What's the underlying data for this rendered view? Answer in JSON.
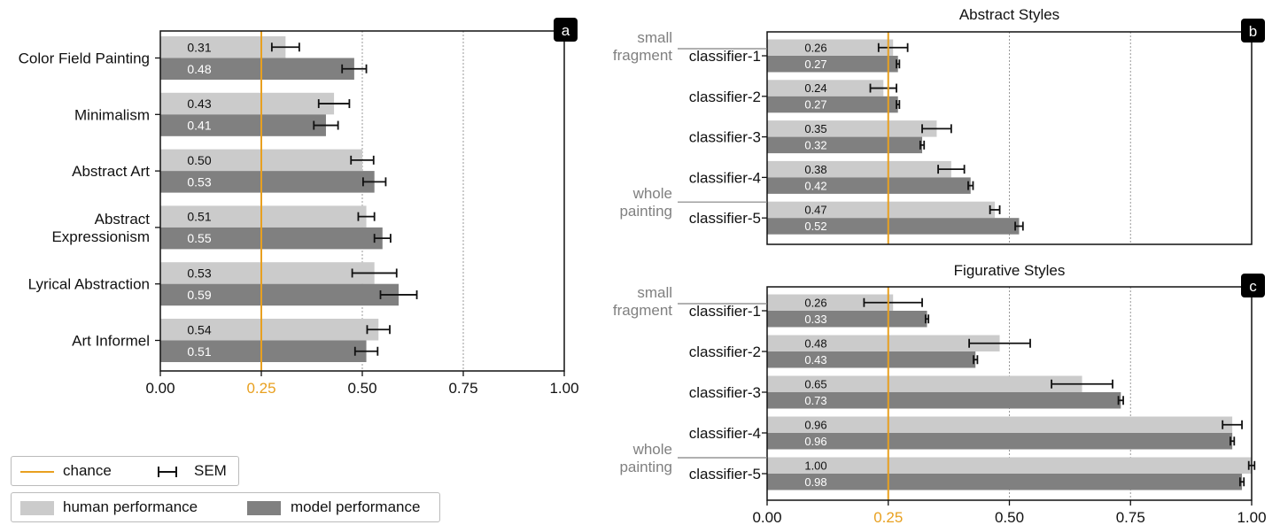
{
  "chart_data": [
    {
      "type": "bar",
      "panel_label": "a",
      "title": "",
      "categories": [
        "Color Field Painting",
        "Minimalism",
        "Abstract Art",
        "Abstract Expressionism",
        "Lyrical Abstraction",
        "Art Informel"
      ],
      "category_lines": [
        [
          "Color Field Painting"
        ],
        [
          "Minimalism"
        ],
        [
          "Abstract Art"
        ],
        [
          "Abstract",
          "Expressionism"
        ],
        [
          "Lyrical Abstraction"
        ],
        [
          "Art Informel"
        ]
      ],
      "series": [
        {
          "name": "human performance",
          "values": [
            0.31,
            0.43,
            0.5,
            0.51,
            0.53,
            0.54
          ],
          "labels": [
            "0.31",
            "0.43",
            "0.50",
            "0.51",
            "0.53",
            "0.54"
          ],
          "sem": [
            0.034,
            0.038,
            0.028,
            0.02,
            0.055,
            0.028
          ]
        },
        {
          "name": "model performance",
          "values": [
            0.48,
            0.41,
            0.53,
            0.55,
            0.59,
            0.51
          ],
          "labels": [
            "0.48",
            "0.41",
            "0.53",
            "0.55",
            "0.59",
            "0.51"
          ],
          "sem": [
            0.03,
            0.03,
            0.028,
            0.02,
            0.045,
            0.028
          ]
        }
      ],
      "xlim": [
        0,
        1
      ],
      "xticks": [
        "0.00",
        "0.25",
        "0.50",
        "0.75",
        "1.00"
      ],
      "chance": 0.25
    },
    {
      "type": "bar",
      "panel_label": "b",
      "title": "Abstract Styles",
      "categories": [
        "classifier-1",
        "classifier-2",
        "classifier-3",
        "classifier-4",
        "classifier-5"
      ],
      "side_labels": {
        "top": [
          "small",
          "fragment"
        ],
        "bottom": [
          "whole",
          "painting"
        ]
      },
      "series": [
        {
          "name": "human performance",
          "values": [
            0.26,
            0.24,
            0.35,
            0.38,
            0.47
          ],
          "labels": [
            "0.26",
            "0.24",
            "0.35",
            "0.38",
            "0.47"
          ],
          "sem": [
            0.03,
            0.027,
            0.03,
            0.027,
            0.01
          ]
        },
        {
          "name": "model performance",
          "values": [
            0.27,
            0.27,
            0.32,
            0.42,
            0.52
          ],
          "labels": [
            "0.27",
            "0.27",
            "0.32",
            "0.42",
            "0.52"
          ],
          "sem": [
            0.003,
            0.003,
            0.004,
            0.005,
            0.008
          ]
        }
      ],
      "xlim": [
        0,
        1
      ],
      "chance": 0.25
    },
    {
      "type": "bar",
      "panel_label": "c",
      "title": "Figurative Styles",
      "categories": [
        "classifier-1",
        "classifier-2",
        "classifier-3",
        "classifier-4",
        "classifier-5"
      ],
      "side_labels": {
        "top": [
          "small",
          "fragment"
        ],
        "bottom": [
          "whole",
          "painting"
        ]
      },
      "series": [
        {
          "name": "human performance",
          "values": [
            0.26,
            0.48,
            0.65,
            0.96,
            1.0
          ],
          "labels": [
            "0.26",
            "0.48",
            "0.65",
            "0.96",
            "1.00"
          ],
          "sem": [
            0.06,
            0.063,
            0.063,
            0.02,
            0.006
          ]
        },
        {
          "name": "model performance",
          "values": [
            0.33,
            0.43,
            0.73,
            0.96,
            0.98
          ],
          "labels": [
            "0.33",
            "0.43",
            "0.73",
            "0.96",
            "0.98"
          ],
          "sem": [
            0.003,
            0.004,
            0.005,
            0.004,
            0.004
          ]
        }
      ],
      "xlim": [
        0,
        1
      ],
      "xticks": [
        "0.00",
        "0.25",
        "0.50",
        "0.75",
        "1.00"
      ],
      "chance": 0.25
    }
  ],
  "legend": {
    "chance": "chance",
    "sem": "SEM",
    "human": "human performance",
    "model": "model performance"
  },
  "colors": {
    "human": "#cbcbcb",
    "model": "#808080",
    "chance": "#e8a020",
    "text": "#111111",
    "side_label": "#808080"
  }
}
